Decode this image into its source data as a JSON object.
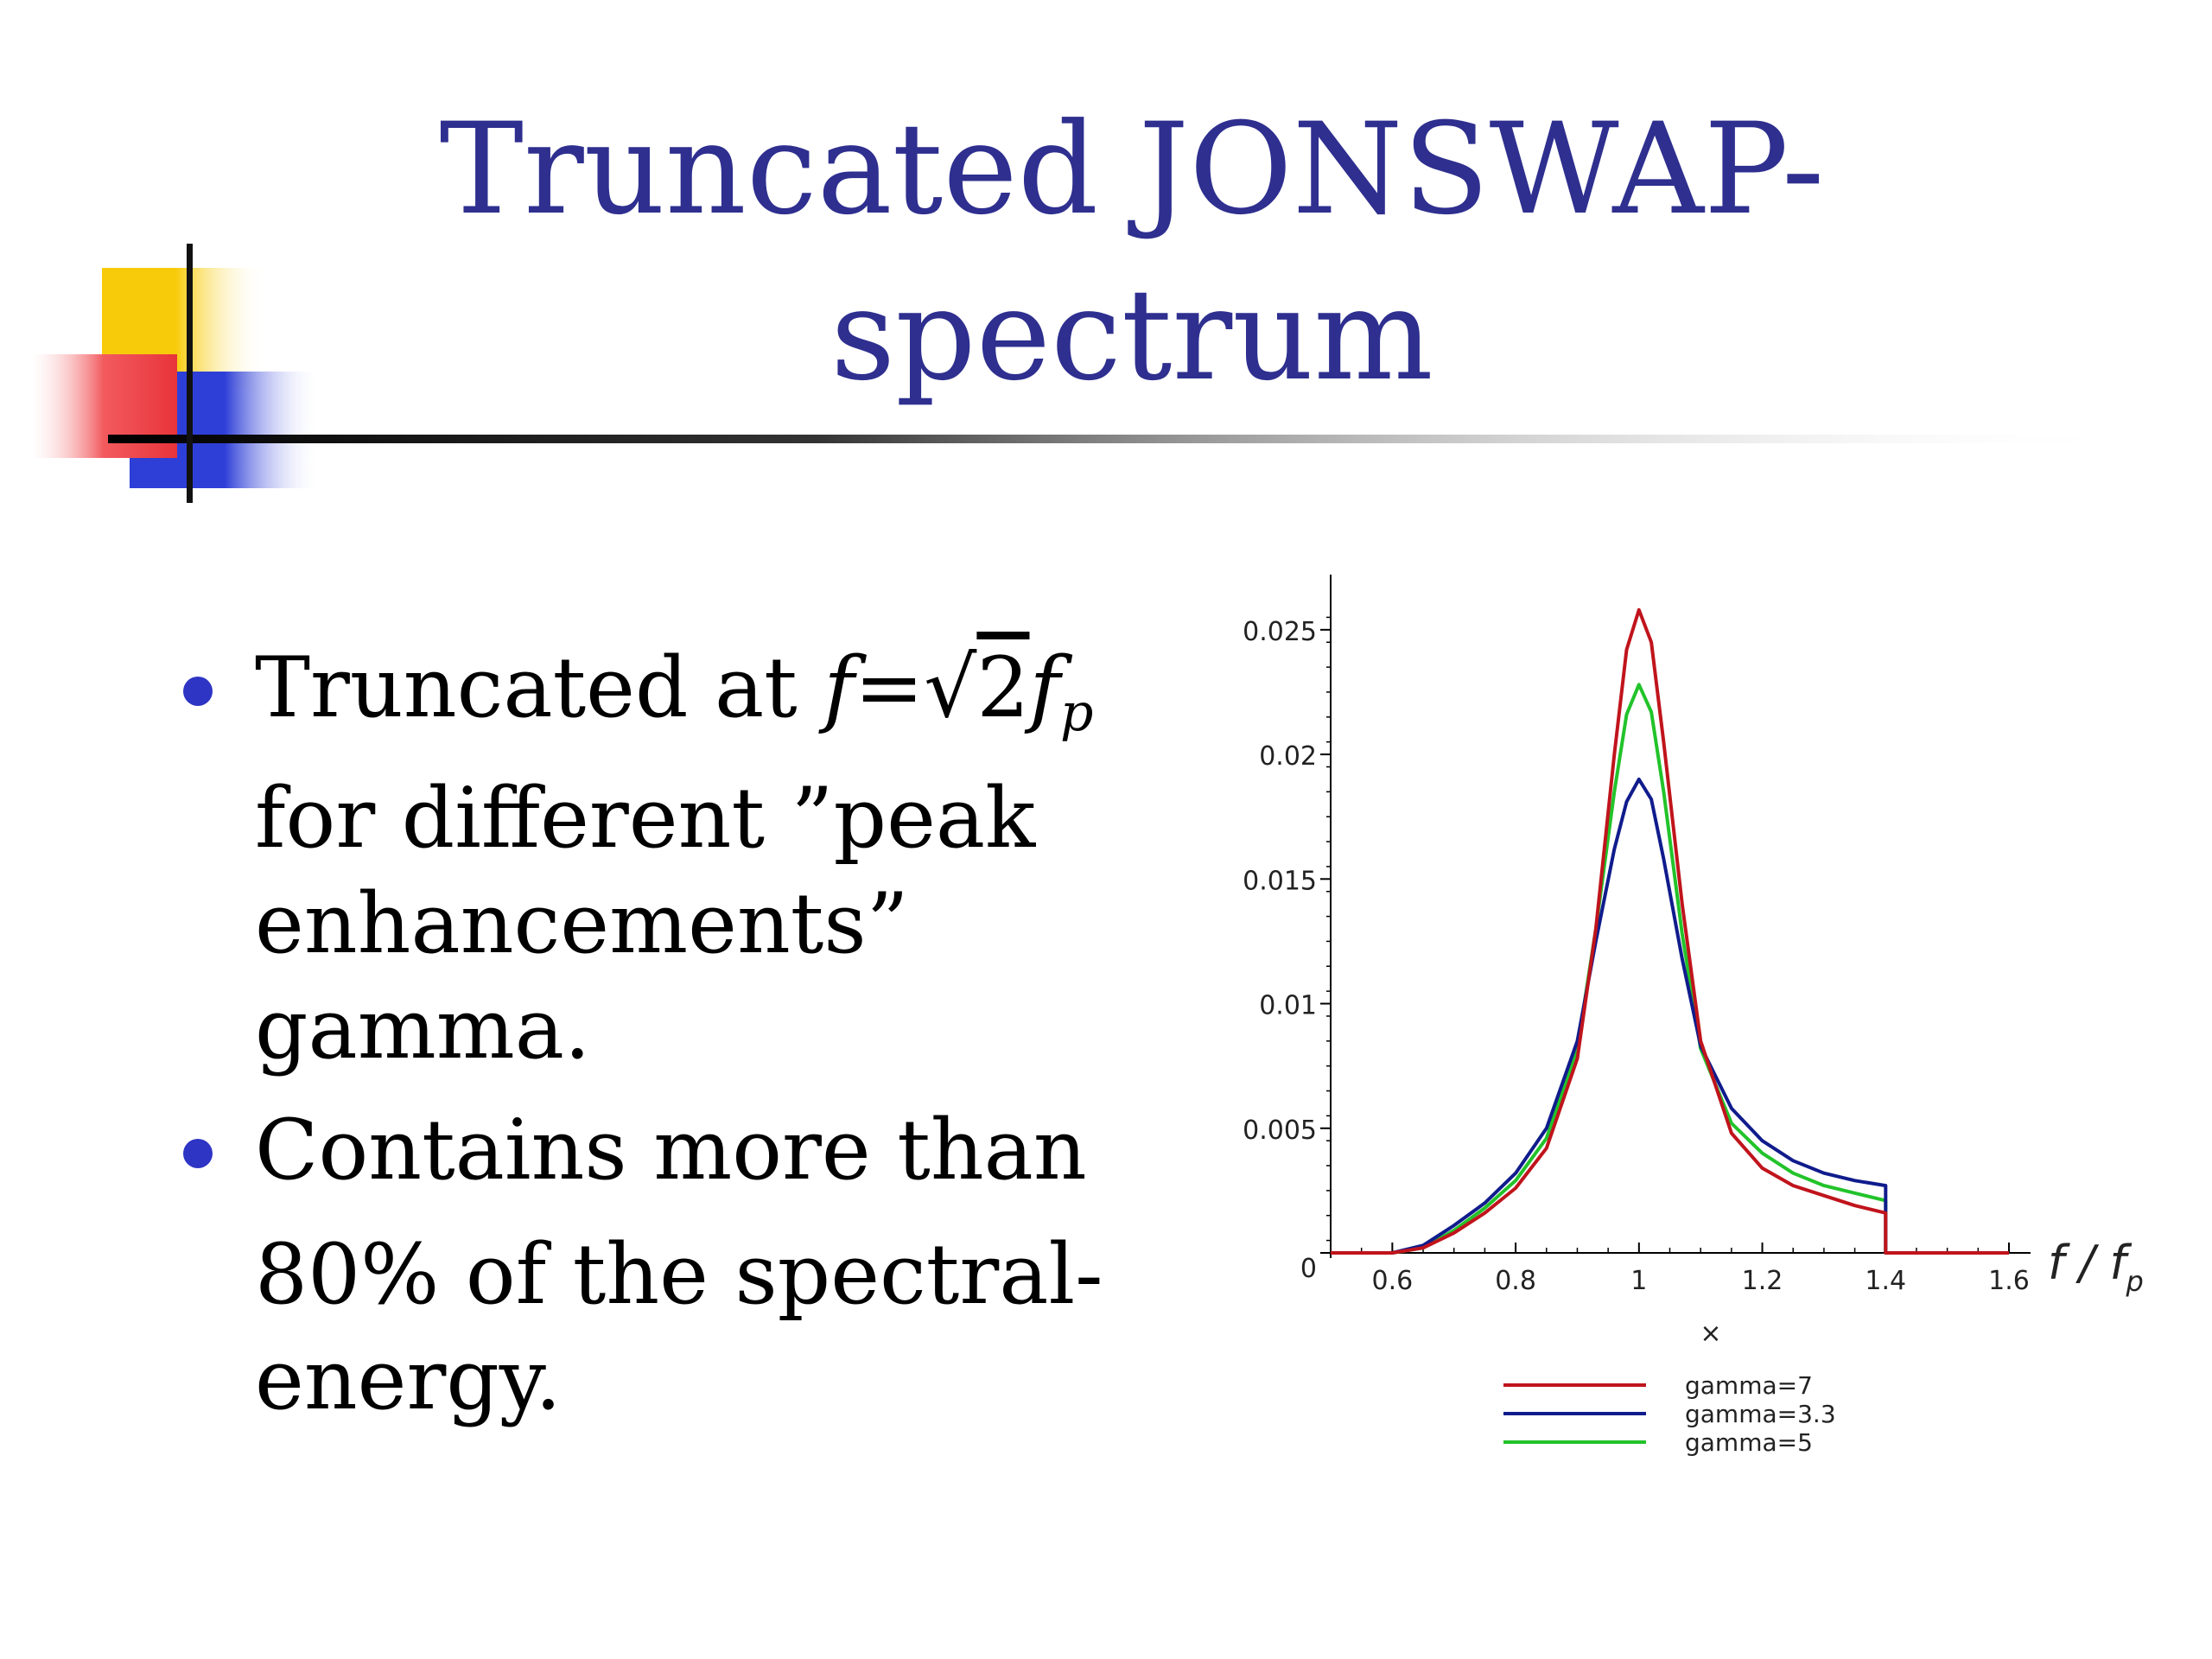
{
  "slide": {
    "title_line1": "Truncated JONSWAP-",
    "title_line2": "spectrum",
    "accent_colors": {
      "title": "#2e2f8f",
      "bullet": "#2e35c4",
      "yellow": "#f7cb0a",
      "red": "#e8343a",
      "blue": "#2e3fd8"
    }
  },
  "bullets": [
    {
      "text_before": "Truncated at ",
      "math": {
        "lhs": "f",
        "eq": "=",
        "sqrt": "√",
        "radicand": "2",
        "rhs": "f",
        "sub": "p"
      },
      "text_after": "for different  ”peak enhancements” gamma."
    },
    {
      "line1": "Contains more than",
      "line2": "80% of the spectral-energy."
    }
  ],
  "chart_data": {
    "type": "line",
    "title": "",
    "xlabel": "f / f",
    "xlabel_sub": "p",
    "ylabel": "",
    "xlim": [
      0.5,
      1.6
    ],
    "ylim": [
      0,
      0.026
    ],
    "xticks": [
      "0.6",
      "0.8",
      "1",
      "1.2",
      "1.4",
      "1.6"
    ],
    "xtick_values": [
      0.6,
      0.8,
      1.0,
      1.2,
      1.4,
      1.6
    ],
    "yticks": [
      "0",
      "0.005",
      "0.01",
      "0.015",
      "0.02",
      "0.025"
    ],
    "ytick_values": [
      0,
      0.005,
      0.01,
      0.015,
      0.02,
      0.025
    ],
    "grid": false,
    "legend_title": "×",
    "legend_position": "bottom",
    "truncation_x": 1.4,
    "series": [
      {
        "name": "gamma=7",
        "color": "#c0141c",
        "x": [
          0.5,
          0.6,
          0.65,
          0.7,
          0.75,
          0.8,
          0.85,
          0.9,
          0.93,
          0.96,
          0.98,
          1.0,
          1.02,
          1.04,
          1.07,
          1.1,
          1.15,
          1.2,
          1.25,
          1.3,
          1.35,
          1.4,
          1.4,
          1.6
        ],
        "y": [
          0.0,
          0.0,
          0.0002,
          0.0008,
          0.0016,
          0.0026,
          0.0042,
          0.0078,
          0.013,
          0.02,
          0.0242,
          0.0258,
          0.0245,
          0.0205,
          0.014,
          0.0085,
          0.0048,
          0.0034,
          0.0027,
          0.0023,
          0.0019,
          0.0016,
          0.0,
          0.0
        ]
      },
      {
        "name": "gamma=3.3",
        "color": "#101c8c",
        "x": [
          0.5,
          0.6,
          0.65,
          0.7,
          0.75,
          0.8,
          0.85,
          0.9,
          0.93,
          0.96,
          0.98,
          1.0,
          1.02,
          1.04,
          1.07,
          1.1,
          1.15,
          1.2,
          1.25,
          1.3,
          1.35,
          1.4,
          1.4,
          1.6
        ],
        "y": [
          0.0,
          0.0,
          0.0003,
          0.0011,
          0.002,
          0.0032,
          0.005,
          0.0085,
          0.0125,
          0.0162,
          0.0181,
          0.019,
          0.0182,
          0.0158,
          0.0118,
          0.0083,
          0.0058,
          0.0045,
          0.0037,
          0.0032,
          0.0029,
          0.0027,
          0.0,
          0.0
        ]
      },
      {
        "name": "gamma=5",
        "color": "#22c32a",
        "x": [
          0.5,
          0.6,
          0.65,
          0.7,
          0.75,
          0.8,
          0.85,
          0.9,
          0.93,
          0.96,
          0.98,
          1.0,
          1.02,
          1.04,
          1.07,
          1.1,
          1.15,
          1.2,
          1.25,
          1.3,
          1.35,
          1.4,
          1.4,
          1.6
        ],
        "y": [
          0.0,
          0.0,
          0.0002,
          0.0009,
          0.0018,
          0.0029,
          0.0046,
          0.0082,
          0.013,
          0.0185,
          0.0216,
          0.0228,
          0.0217,
          0.0185,
          0.0128,
          0.0082,
          0.0052,
          0.004,
          0.0032,
          0.0027,
          0.0024,
          0.0021,
          0.0,
          0.0
        ]
      }
    ]
  }
}
